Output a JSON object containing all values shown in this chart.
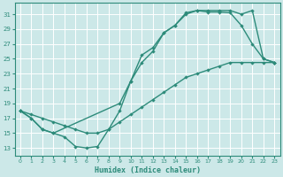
{
  "xlabel": "Humidex (Indice chaleur)",
  "bg_color": "#cce8e8",
  "grid_color": "#ffffff",
  "line_color": "#2d8b7a",
  "xlim": [
    -0.5,
    23.5
  ],
  "ylim": [
    12,
    32.5
  ],
  "xticks": [
    0,
    1,
    2,
    3,
    4,
    5,
    6,
    7,
    8,
    9,
    10,
    11,
    12,
    13,
    14,
    15,
    16,
    17,
    18,
    19,
    20,
    21,
    22,
    23
  ],
  "yticks": [
    13,
    15,
    17,
    19,
    21,
    23,
    25,
    27,
    29,
    31
  ],
  "curveA_x": [
    0,
    1,
    2,
    3,
    4,
    5,
    6,
    7,
    8,
    9,
    10,
    11,
    12,
    13,
    14,
    15,
    16,
    17,
    18,
    19,
    20,
    21,
    22,
    23
  ],
  "curveA_y": [
    18,
    17,
    15.5,
    15,
    14.5,
    13.2,
    13.0,
    13.2,
    15.5,
    18,
    22,
    24.5,
    26,
    28.5,
    29.5,
    31.2,
    31.5,
    31.3,
    31.3,
    31.2,
    29.5,
    27.0,
    25.0,
    24.5
  ],
  "curveB_x": [
    0,
    1,
    2,
    3,
    9,
    10,
    11,
    12,
    13,
    14,
    15,
    16,
    17,
    18,
    19,
    20,
    21,
    22,
    23
  ],
  "curveB_y": [
    18,
    17,
    15.5,
    15,
    19,
    22,
    25.5,
    26.5,
    28.5,
    29.5,
    31.0,
    31.5,
    31.5,
    31.5,
    31.5,
    31.0,
    31.5,
    25.0,
    24.5
  ],
  "curveC_x": [
    0,
    1,
    2,
    3,
    4,
    5,
    6,
    7,
    8,
    9,
    10,
    11,
    12,
    13,
    14,
    15,
    16,
    17,
    18,
    19,
    20,
    21,
    22,
    23
  ],
  "curveC_y": [
    18,
    17.5,
    17.0,
    16.5,
    16.0,
    15.5,
    15.0,
    15.0,
    15.5,
    16.5,
    17.5,
    18.5,
    19.5,
    20.5,
    21.5,
    22.5,
    23.0,
    23.5,
    24.0,
    24.5,
    24.5,
    24.5,
    24.5,
    24.5
  ]
}
